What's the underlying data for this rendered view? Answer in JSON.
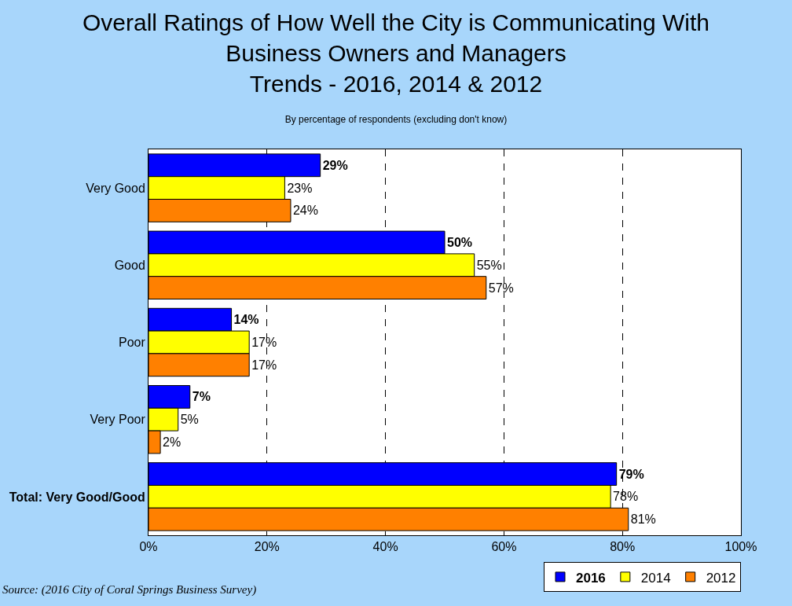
{
  "chart_data": {
    "type": "bar",
    "orientation": "horizontal",
    "title": "Overall Ratings of How Well the City is Communicating With\nBusiness Owners and Managers\nTrends - 2016, 2014 & 2012",
    "subtitle": "By percentage of respondents (excluding don't know)",
    "categories": [
      "Very Good",
      "Good",
      "Poor",
      "Very Poor",
      "Total: Very Good/Good"
    ],
    "series": [
      {
        "name": "2016",
        "color": "#0000ff",
        "values": [
          29,
          50,
          14,
          7,
          79
        ],
        "value_labels": [
          "29%",
          "50%",
          "14%",
          "7%",
          "79%"
        ]
      },
      {
        "name": "2014",
        "color": "#ffff00",
        "values": [
          23,
          55,
          17,
          5,
          78
        ],
        "value_labels": [
          "23%",
          "55%",
          "17%",
          "5%",
          "78%"
        ]
      },
      {
        "name": "2012",
        "color": "#ff8000",
        "values": [
          24,
          57,
          17,
          2,
          81
        ],
        "value_labels": [
          "24%",
          "57%",
          "17%",
          "2%",
          "81%"
        ]
      }
    ],
    "xlim": [
      0,
      100
    ],
    "xticks": [
      {
        "value": 0,
        "label": "0%"
      },
      {
        "value": 20,
        "label": "20%"
      },
      {
        "value": 40,
        "label": "40%"
      },
      {
        "value": 60,
        "label": "60%"
      },
      {
        "value": 80,
        "label": "80%"
      },
      {
        "value": 100,
        "label": "100%"
      }
    ],
    "grid": "x",
    "legend": "bottom right",
    "annotations": [
      "Source: (2016 City of Coral Springs Business Survey)"
    ]
  }
}
